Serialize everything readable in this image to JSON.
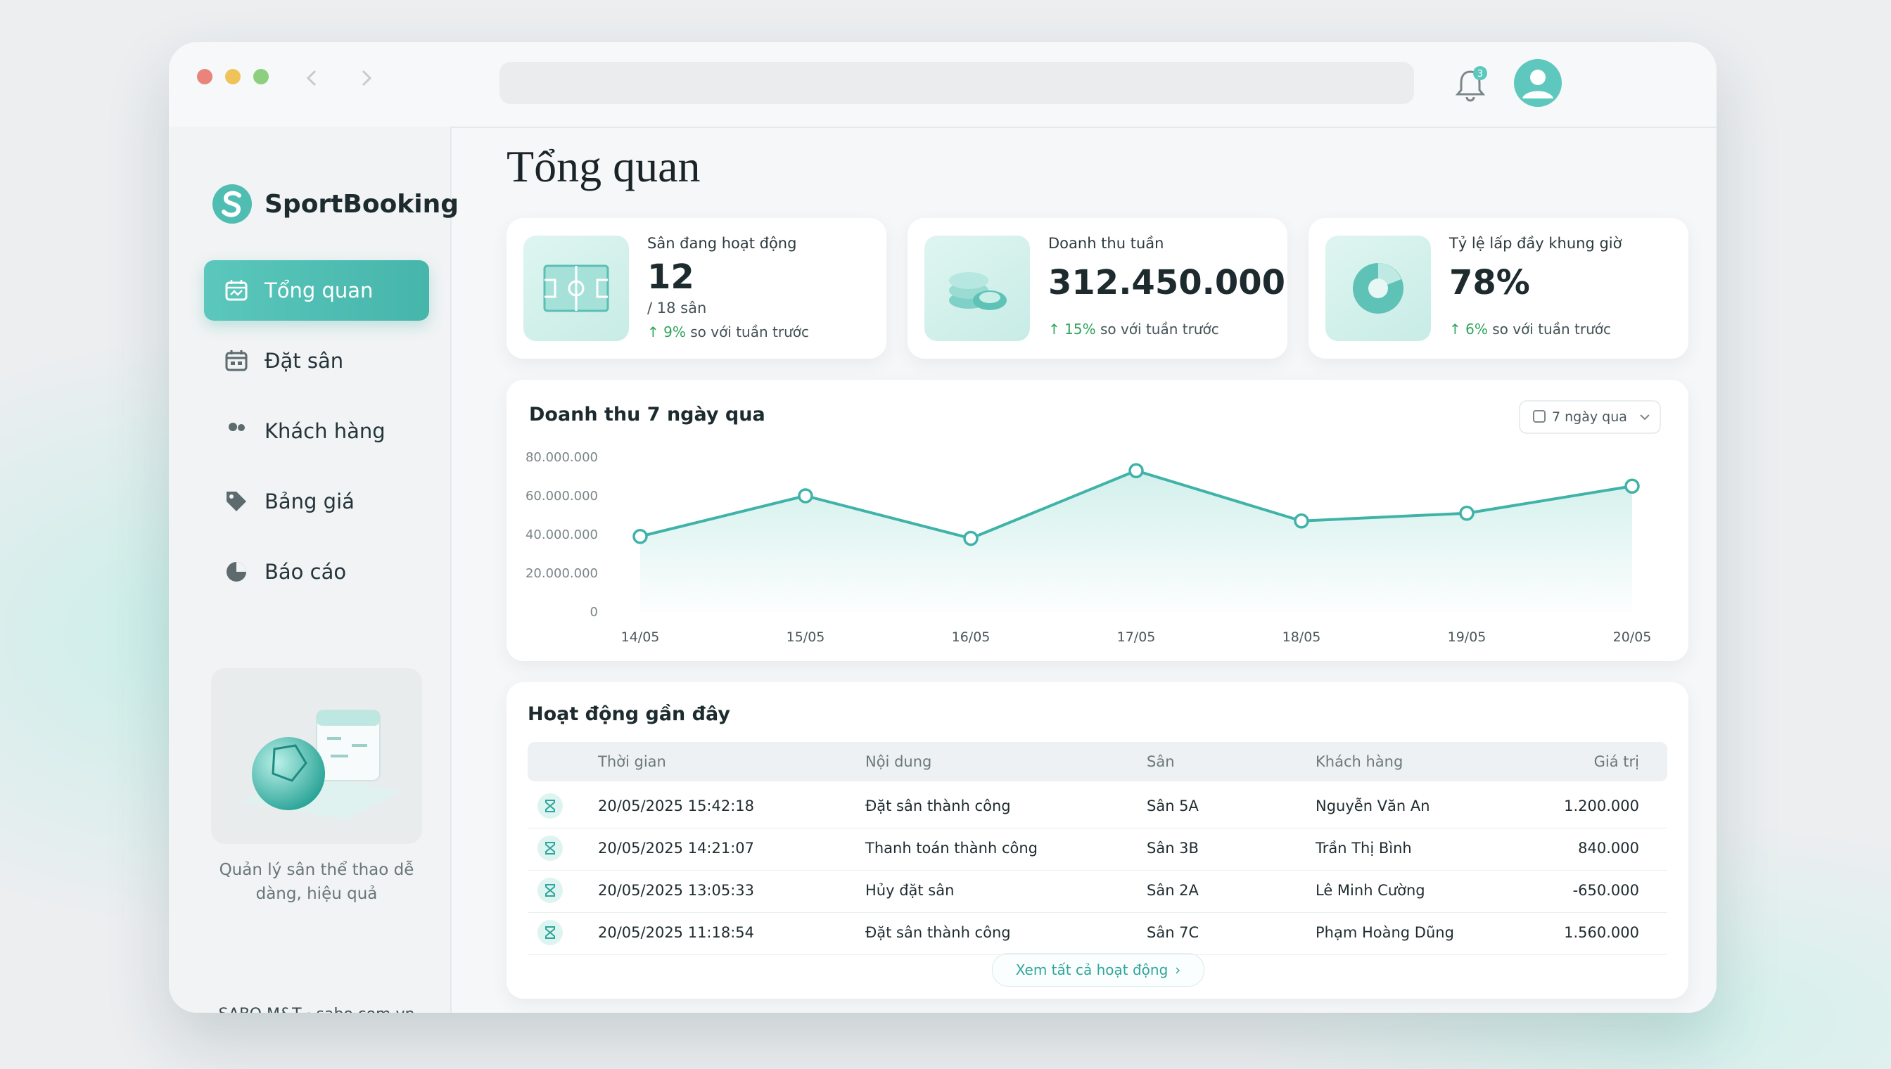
{
  "browser": {
    "notification_count": 3
  },
  "sidebar": {
    "brand": "SportBooking",
    "nav": [
      {
        "label": "Tổng quan",
        "active": true
      },
      {
        "label": "Đặt sân",
        "active": false
      },
      {
        "label": "Khách hàng",
        "active": false
      },
      {
        "label": "Bảng giá",
        "active": false
      },
      {
        "label": "Báo cáo",
        "active": false
      }
    ],
    "promo": "Quản lý sân thể thao dễ dàng, hiệu quả",
    "footer": "SABO M&T · sabo.com.vn"
  },
  "header": {
    "title": "Tổng quan"
  },
  "stats": [
    {
      "label": "Sân đang hoạt động",
      "value": "12",
      "detail": "/ 18 sân",
      "change": "9%",
      "note": "so với tuần trước"
    },
    {
      "label": "Doanh thu tuần",
      "value": "312.450.000",
      "change": "15%",
      "note": "so với tuần trước"
    },
    {
      "label": "Tỷ lệ lấp đầy khung giờ",
      "value": "78%",
      "change": "6%",
      "note": "so với tuần trước"
    }
  ],
  "chart_data": {
    "type": "line",
    "title": "Doanh thu 7 ngày qua",
    "period": "7 ngày qua",
    "categories": [
      "14/05",
      "15/05",
      "16/05",
      "17/05",
      "18/05",
      "19/05",
      "20/05"
    ],
    "values": [
      39000000,
      60000000,
      38000000,
      73000000,
      47000000,
      51000000,
      65000000
    ],
    "color": "#3fb3a8",
    "ylim": [
      0,
      80000000
    ],
    "yticks": [
      0,
      {
        "value": 20000000,
        "label": "20.000.000"
      },
      {
        "value": 40000000,
        "label": "40.000.000"
      },
      {
        "value": 60000000,
        "label": "60.000.000"
      },
      {
        "value": 80000000,
        "label": "80.000.000"
      }
    ],
    "grid": false
  },
  "activity": {
    "title": "Hoạt động gần đây",
    "columns": [
      "Thời gian",
      "Nội dung",
      "Sân",
      "Khách hàng",
      "Giá trị"
    ],
    "rows": [
      [
        "20/05/2025 15:42:18",
        "Đặt sân thành công",
        "Sân 5A",
        "Nguyễn Văn An",
        "1.200.000"
      ],
      [
        "20/05/2025 14:21:07",
        "Thanh toán thành công",
        "Sân 3B",
        "Trần Thị Bình",
        "840.000"
      ],
      [
        "20/05/2025 13:05:33",
        "Hủy đặt sân",
        "Sân 2A",
        "Lê Minh Cường",
        "-650.000"
      ],
      [
        "20/05/2025 11:18:54",
        "Đặt sân thành công",
        "Sân 7C",
        "Phạm Hoàng Dũng",
        "1.560.000"
      ]
    ],
    "link": "Xem tất cả hoạt động"
  }
}
